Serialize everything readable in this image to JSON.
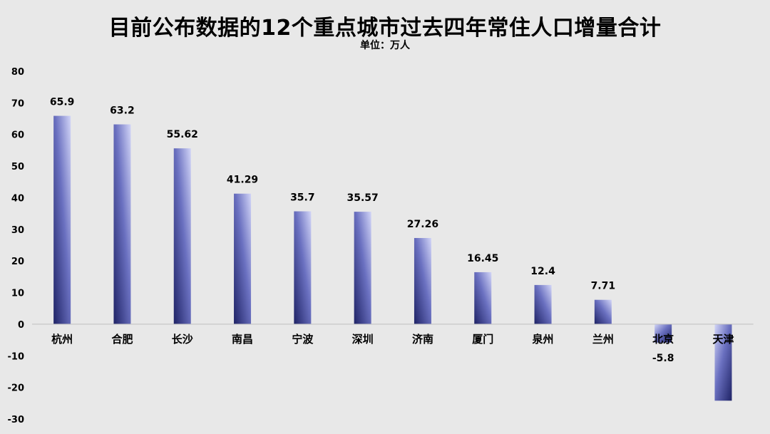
{
  "title": "目前公布数据的12个重点城市过去四年常住人口增量合计",
  "subtitle": "单位：万人",
  "chart_data": {
    "type": "bar",
    "title": "目前公布数据的12个重点城市过去四年常住人口增量合计",
    "subtitle": "单位：万人",
    "xlabel": "",
    "ylabel": "",
    "categories": [
      "杭州",
      "合肥",
      "长沙",
      "南昌",
      "宁波",
      "深圳",
      "济南",
      "厦门",
      "泉州",
      "兰州",
      "北京",
      "天津"
    ],
    "values": [
      65.9,
      63.2,
      55.62,
      41.29,
      35.7,
      35.57,
      27.26,
      16.45,
      12.4,
      7.71,
      -5.8,
      -24.2
    ],
    "data_labels": [
      "65.9",
      "63.2",
      "55.62",
      "41.29",
      "35.7",
      "35.57",
      "27.26",
      "16.45",
      "12.4",
      "7.71",
      "-5.8",
      ""
    ],
    "yticks": [
      "80",
      "70",
      "60",
      "50",
      "40",
      "30",
      "20",
      "10",
      "0",
      "-10",
      "-20",
      "-30"
    ],
    "ylim": [
      -30,
      80
    ],
    "grid": false,
    "legend": "none",
    "colors": {
      "bar_dark": "#1f2366",
      "bar_light": "#c9cdf5",
      "background": "#e8e8e8"
    }
  }
}
